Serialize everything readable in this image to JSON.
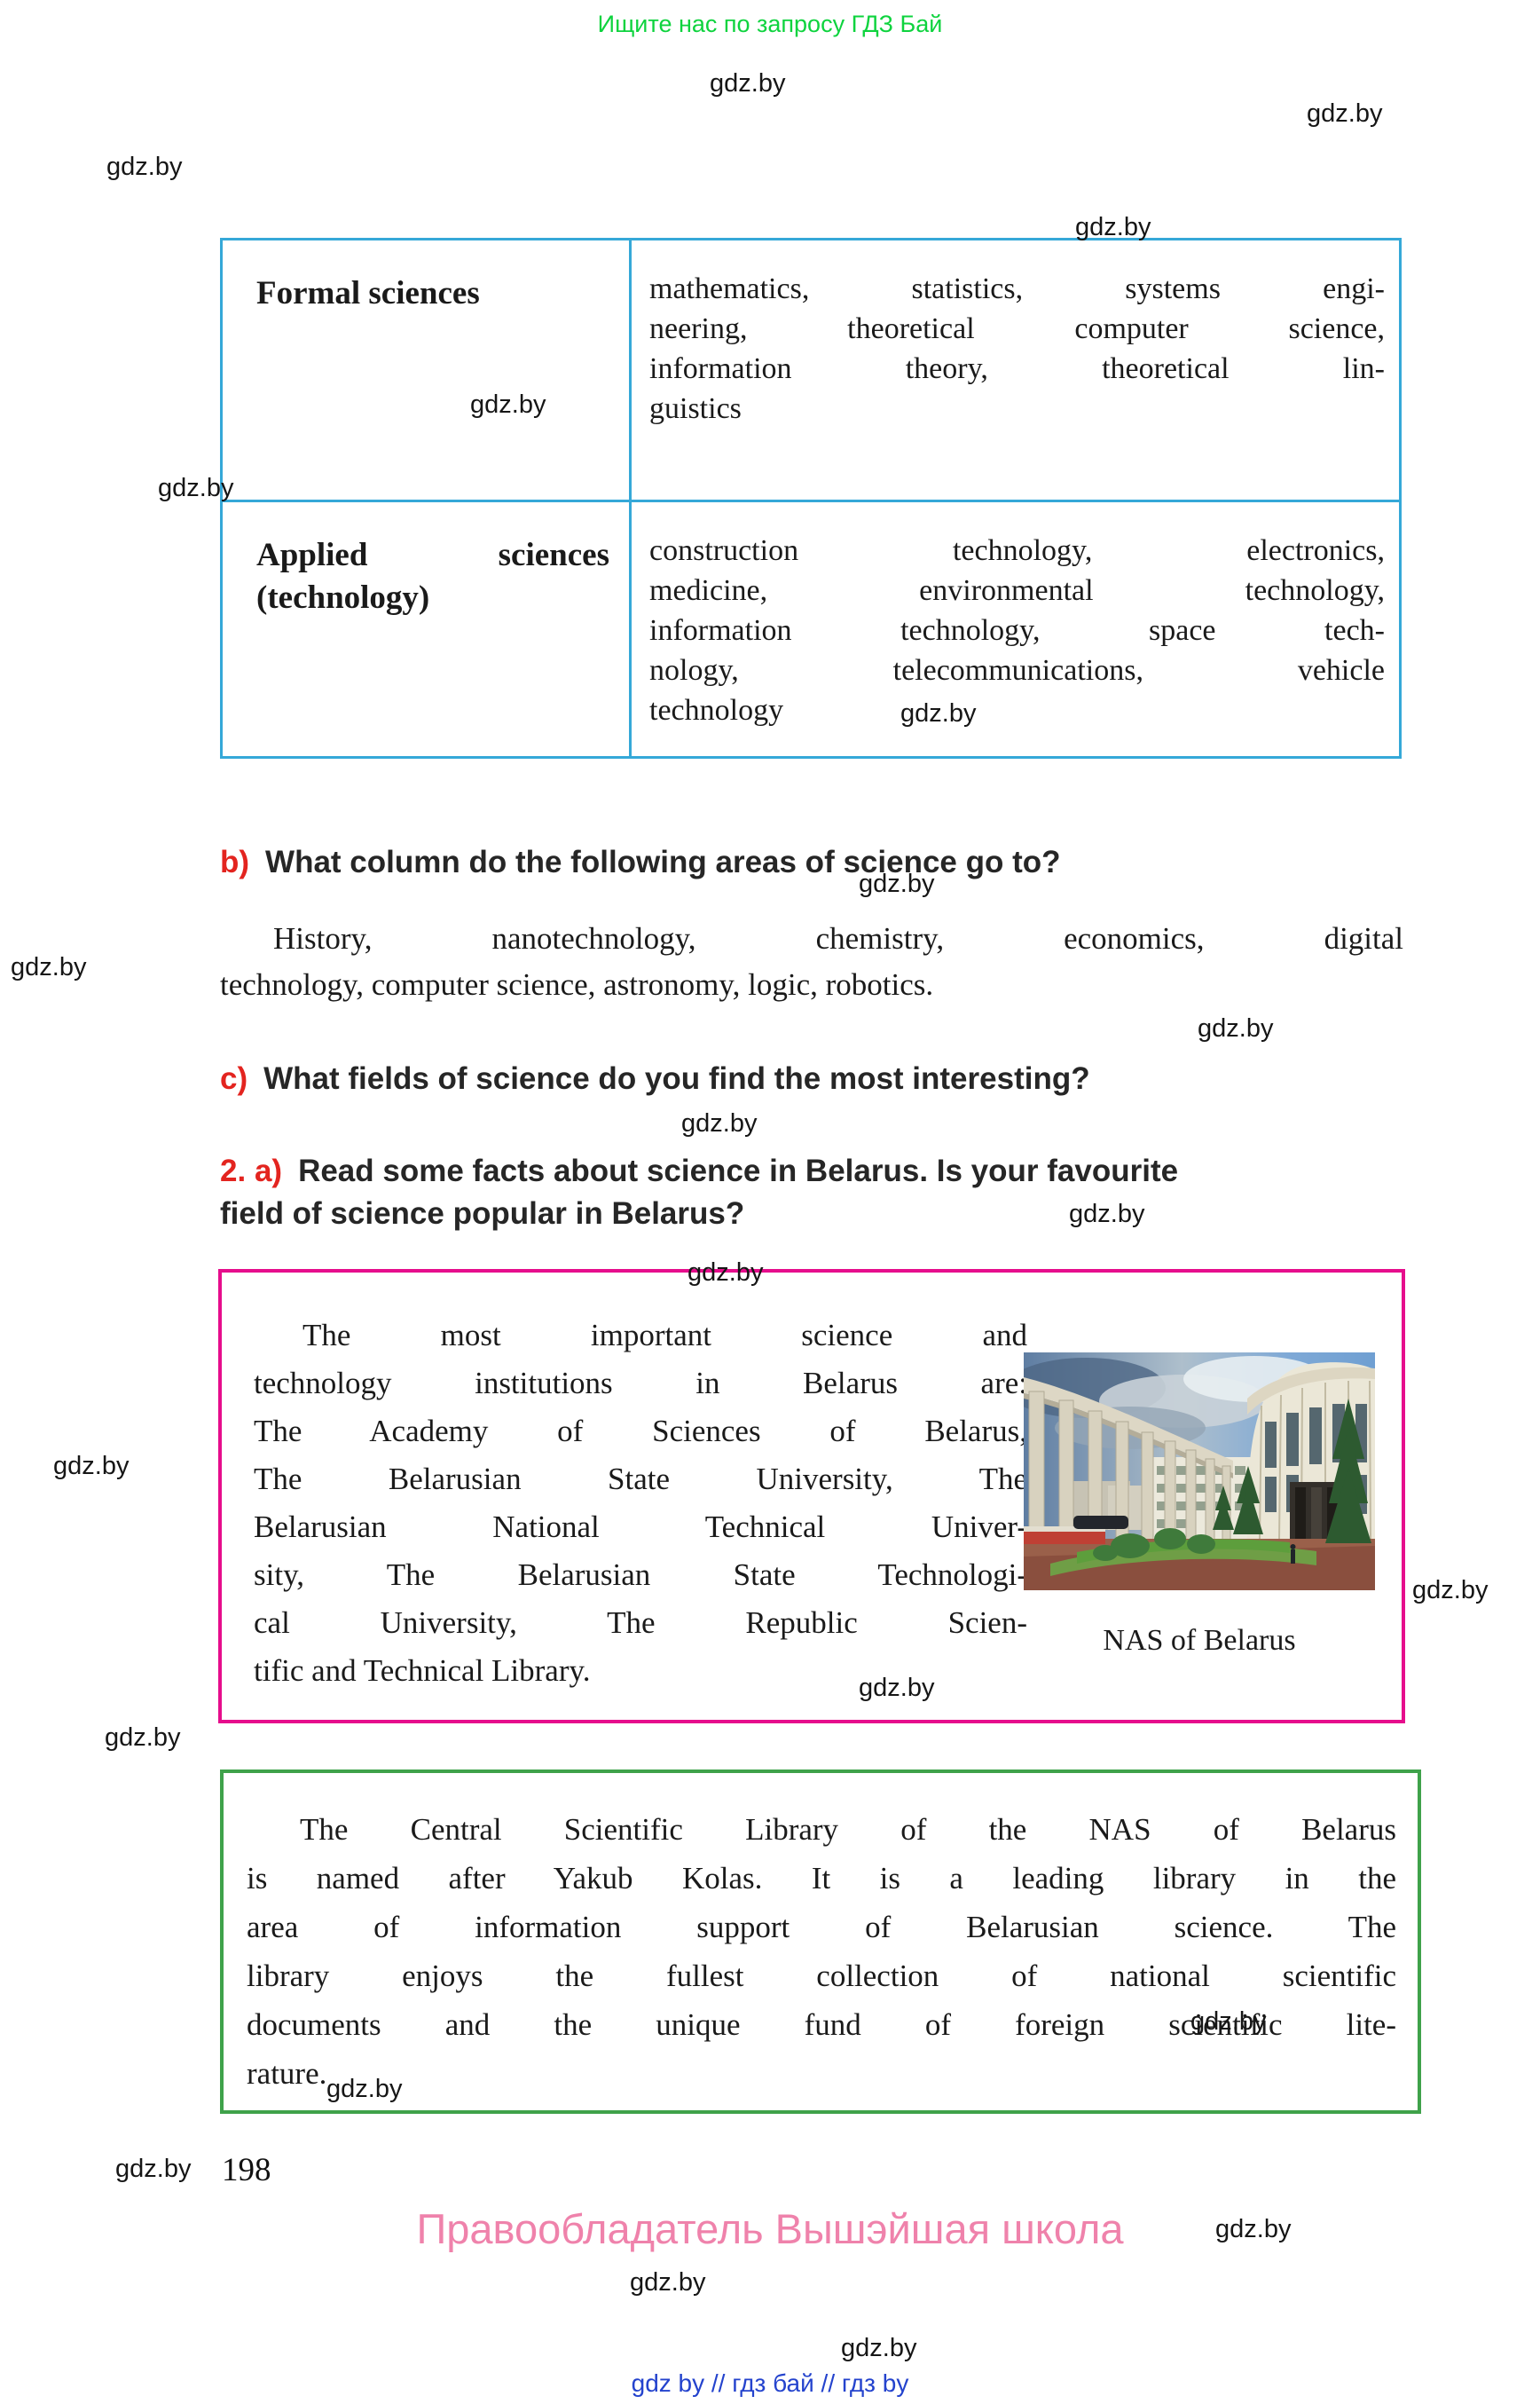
{
  "top_note": "Ищите нас по запросу ГДЗ Бай",
  "watermark_label": "gdz.by",
  "table": {
    "rows": [
      {
        "term_lines": [
          "Formal sciences"
        ],
        "desc_lines": [
          "mathematics, statistics, systems engi-",
          "neering, theoretical computer science,",
          "information theory, theoretical lin-",
          "guistics"
        ]
      },
      {
        "term_lines": [
          "Applied sciences",
          "(technology)"
        ],
        "desc_lines": [
          "construction technology, electronics,",
          "medicine, environmental technology,",
          "information technology, space tech-",
          "nology, telecommunications, vehicle",
          "technology"
        ]
      }
    ]
  },
  "questions": {
    "b_label": "b)",
    "b_text": "What column do the following areas of science go to?",
    "list_lines": [
      "History, nanotechnology, chemistry, economics, digital",
      "technology, computer science, astronomy, logic, robotics."
    ],
    "c_label": "c)",
    "c_text": "What fields of science do you find the most interesting?"
  },
  "task2": {
    "num": "2.",
    "sub": "a)",
    "line1": "Read some facts about science in Belarus. Is your favourite",
    "line2": "field of science popular in Belarus?"
  },
  "pink_box": {
    "text_lines": [
      "The most important science and",
      "technology institutions in Belarus are:",
      "The Academy of Sciences of Belarus,",
      "The Belarusian State University, The",
      "Belarusian National Technical Univer-",
      "sity, The Belarusian State Technologi-",
      "cal University, The Republic Scien-",
      "tific and Technical Library."
    ],
    "caption": "NAS of Belarus"
  },
  "green_box": {
    "text_lines": [
      "The Central Scientific Library of the NAS of Belarus",
      "is named after Yakub Kolas. It is a leading library in the",
      "area of information support of Belarusian science. The",
      "library enjoys the fullest collection of national scientific",
      "documents and the unique fund of foreign scientific lite-",
      "rature."
    ]
  },
  "page_number": "198",
  "publisher": "Правообладатель Вышэйшая школа",
  "footer_links": "gdz by  //  гдз бай  //  гдз by",
  "colors": {
    "top_note_green": "#0ed33e",
    "table_border_blue": "#35a8d8",
    "pink_border": "#e60d8c",
    "green_border": "#3fa24a",
    "red_label": "#e3241f",
    "publisher_pink": "#ef82ab",
    "footer_blue": "#2443cd"
  }
}
